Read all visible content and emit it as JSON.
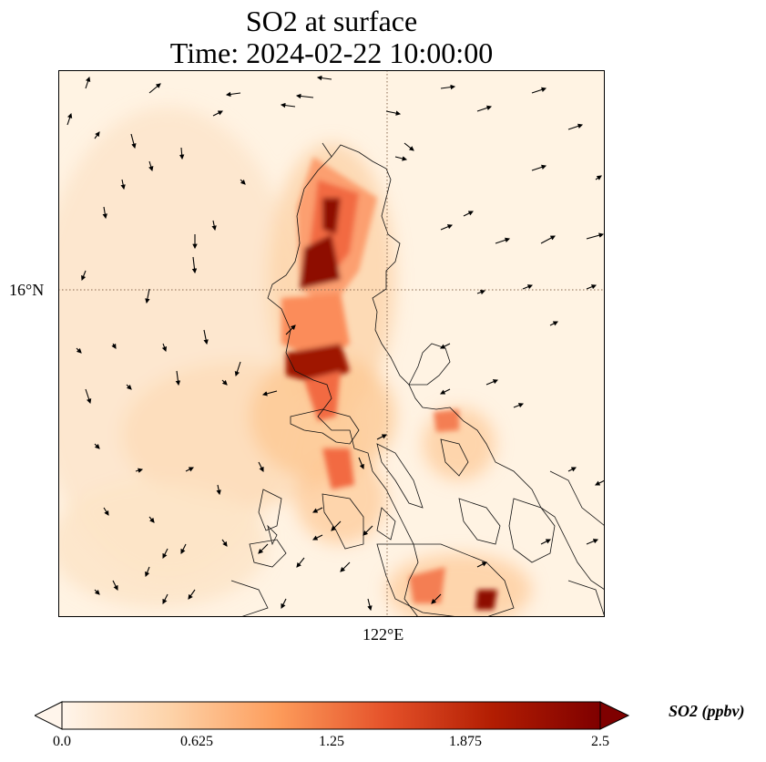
{
  "title_line1": "SO2 at surface",
  "title_line2": "Time: 2024-02-22 10:00:00",
  "axes": {
    "lat_label": "16°N",
    "lon_label": "122°E"
  },
  "colorbar": {
    "label": "SO2 (ppbv)",
    "ticks": [
      "0.0",
      "0.625",
      "1.25",
      "1.875",
      "2.5"
    ],
    "min": 0,
    "max": 2.5,
    "colormap": [
      "#fff5eb",
      "#fdd3a9",
      "#fd9c5b",
      "#e5522a",
      "#b21d02",
      "#7f0000"
    ]
  }
}
